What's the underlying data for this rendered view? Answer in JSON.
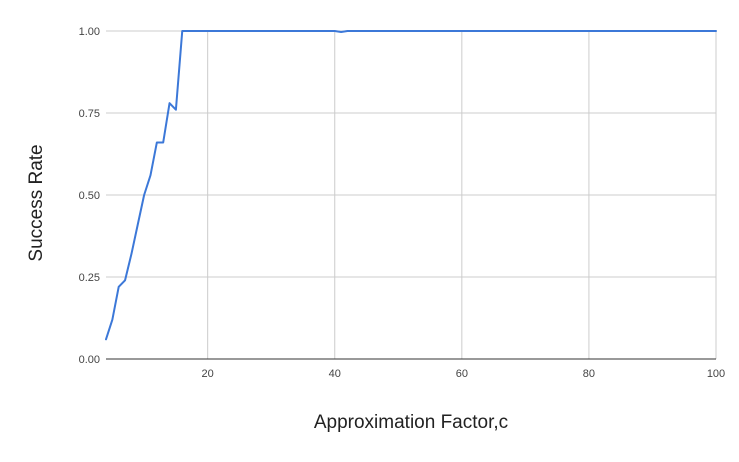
{
  "chart_data": {
    "type": "line",
    "title": "",
    "xlabel": "Approximation Factor,c",
    "ylabel": "Success Rate",
    "xlim": [
      4,
      100
    ],
    "ylim": [
      0,
      1
    ],
    "x_ticks": [
      20,
      40,
      60,
      80,
      100
    ],
    "y_ticks": [
      0,
      0.25,
      0.5,
      0.75,
      1
    ],
    "y_tick_labels": [
      "0.00",
      "0.25",
      "0.50",
      "0.75",
      "1.00"
    ],
    "grid": true,
    "line_color": "#3c78d8",
    "series": [
      {
        "x": [
          4,
          5,
          6,
          7,
          8,
          9,
          10,
          11,
          12,
          13,
          14,
          15,
          16,
          17,
          18,
          20,
          30,
          40,
          41,
          42,
          50,
          60,
          70,
          80,
          90,
          100
        ],
        "y": [
          0.06,
          0.12,
          0.22,
          0.24,
          0.32,
          0.41,
          0.5,
          0.56,
          0.66,
          0.66,
          0.78,
          0.76,
          1.0,
          1.0,
          1.0,
          1.0,
          1.0,
          1.0,
          0.997,
          1.0,
          1.0,
          1.0,
          1.0,
          1.0,
          1.0,
          1.0
        ]
      }
    ]
  }
}
